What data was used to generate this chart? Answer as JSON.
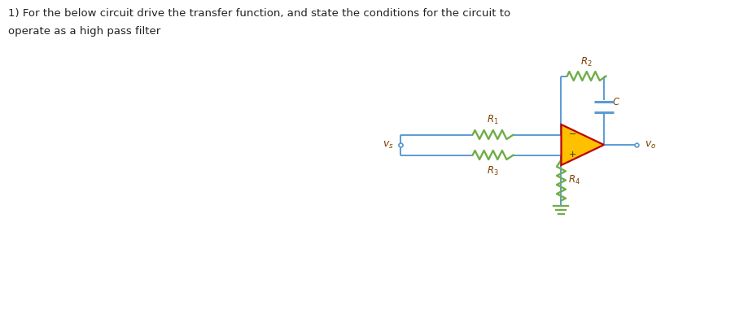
{
  "bg_color": "#ffffff",
  "wire_color": "#5b9bd5",
  "resistor_color": "#70ad47",
  "cap_color": "#5b9bd5",
  "opamp_fill": "#ffc000",
  "opamp_edge": "#c00000",
  "label_color": "#7f3f00",
  "title_line1": "1) For the below circuit drive the transfer function, and state the conditions for the circuit to",
  "title_line2": "operate as a high pass filter",
  "vs_label": "$v_s$",
  "vo_label": "$v_o$",
  "R1_label": "$R_1$",
  "R2_label": "$R_2$",
  "R3_label": "$R_3$",
  "R4_label": "$R_4$",
  "C_label": "$C$",
  "minus_label": "−",
  "plus_label": "+"
}
